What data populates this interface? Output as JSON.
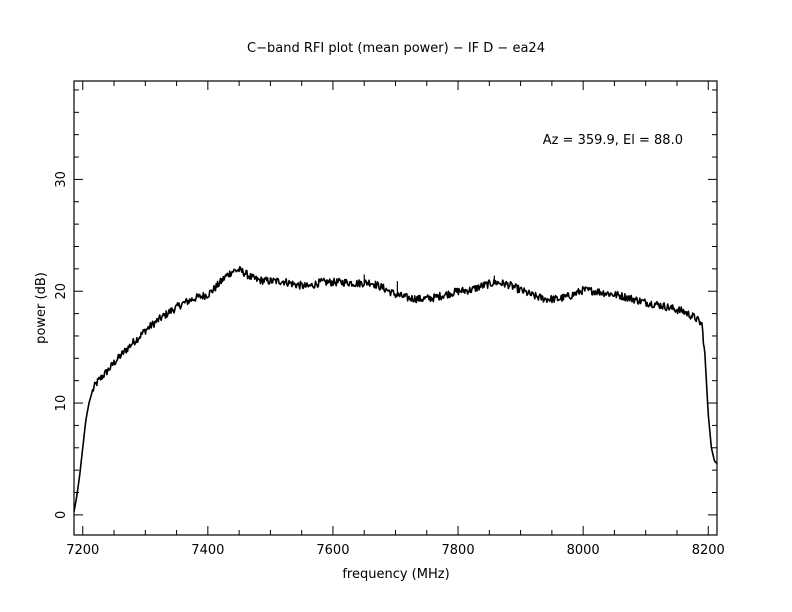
{
  "chart_data": {
    "type": "line",
    "title": "C−band RFI plot (mean power) − IF D − ea24",
    "xlabel": "frequency (MHz)",
    "ylabel": "power (dB)",
    "annotation": "Az = 359.9, El = 88.0",
    "xlim": [
      7186,
      8214
    ],
    "ylim": [
      -1.8,
      38.8
    ],
    "x_ticks": [
      7200,
      7400,
      7600,
      7800,
      8000,
      8200
    ],
    "y_ticks": [
      0,
      10,
      20,
      30
    ],
    "x_tick_labels": [
      "7200",
      "7400",
      "7600",
      "7800",
      "8000",
      "8200"
    ],
    "y_tick_labels": [
      "0",
      "10",
      "20",
      "30"
    ],
    "x_minor_step": 50,
    "y_minor_step": 2,
    "grid": false,
    "line_color": "#000000",
    "series": [
      {
        "x": [
          7186,
          7190,
          7195,
          7200,
          7205,
          7210,
          7215,
          7220,
          7225,
          7230,
          7240,
          7250,
          7260,
          7270,
          7280,
          7290,
          7300,
          7320,
          7340,
          7360,
          7380,
          7400,
          7410,
          7420,
          7430,
          7440,
          7450,
          7460,
          7470,
          7480,
          7500,
          7520,
          7540,
          7560,
          7570,
          7580,
          7600,
          7620,
          7640,
          7660,
          7680,
          7700,
          7720,
          7740,
          7760,
          7780,
          7800,
          7820,
          7840,
          7860,
          7880,
          7900,
          7920,
          7940,
          7960,
          7980,
          8000,
          8020,
          8040,
          8060,
          8080,
          8100,
          8120,
          8140,
          8160,
          8180,
          8185,
          8190,
          8195,
          8200,
          8205,
          8210,
          8214
        ],
        "y": [
          0.3,
          1.5,
          3.5,
          6.0,
          8.5,
          10.0,
          11.0,
          11.6,
          12.0,
          12.3,
          12.9,
          13.6,
          14.2,
          14.8,
          15.4,
          15.9,
          16.5,
          17.4,
          18.2,
          18.9,
          19.4,
          19.7,
          20.2,
          20.8,
          21.4,
          21.8,
          21.9,
          21.6,
          21.2,
          21.0,
          20.9,
          20.9,
          20.6,
          20.4,
          20.6,
          20.8,
          20.8,
          20.8,
          20.7,
          20.8,
          20.3,
          19.7,
          19.4,
          19.3,
          19.4,
          19.7,
          20.0,
          20.1,
          20.5,
          20.8,
          20.6,
          20.1,
          19.6,
          19.3,
          19.3,
          19.6,
          20.1,
          20.0,
          19.8,
          19.6,
          19.3,
          19.0,
          18.8,
          18.5,
          18.2,
          17.6,
          17.3,
          17.0,
          14.0,
          9.0,
          6.0,
          4.8,
          4.6
        ]
      }
    ],
    "spikes": [
      {
        "x": 7650,
        "y": 21.5
      },
      {
        "x": 7703,
        "y": 20.9
      },
      {
        "x": 7858,
        "y": 21.4
      }
    ]
  }
}
